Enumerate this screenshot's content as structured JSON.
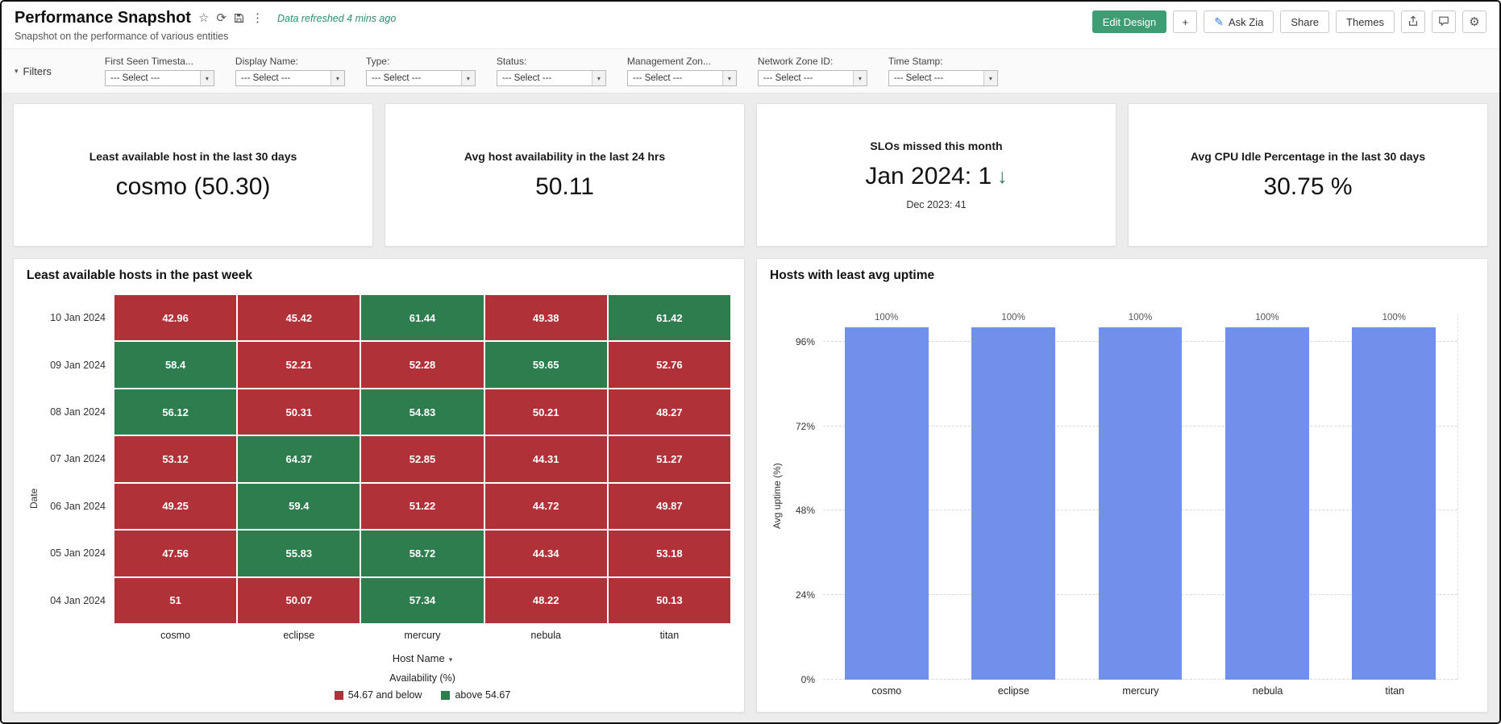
{
  "header": {
    "title": "Performance Snapshot",
    "subtitle": "Snapshot on the performance of various entities",
    "refreshed_text": "Data refreshed 4 mins ago",
    "actions": {
      "edit_design": "Edit Design",
      "add": "+",
      "ask_zia": "Ask Zia",
      "share": "Share",
      "themes": "Themes"
    }
  },
  "icons": {
    "star": "☆",
    "refresh": "⟳",
    "kebab": "⋮",
    "gear": "⚙",
    "chevron_down": "▾",
    "zia_pen": "✎"
  },
  "filters": {
    "toggle_label": "Filters",
    "items": [
      {
        "label": "First Seen Timesta...",
        "value": "--- Select ---"
      },
      {
        "label": "Display Name:",
        "value": "--- Select ---"
      },
      {
        "label": "Type:",
        "value": "--- Select ---"
      },
      {
        "label": "Status:",
        "value": "--- Select ---"
      },
      {
        "label": "Management Zon...",
        "value": "--- Select ---"
      },
      {
        "label": "Network Zone ID:",
        "value": "--- Select ---"
      },
      {
        "label": "Time Stamp:",
        "value": "--- Select ---"
      }
    ]
  },
  "kpis": [
    {
      "title": "Least available host in the last 30 days",
      "value": "cosmo (50.30)"
    },
    {
      "title": "Avg host availability in the last 24 hrs",
      "value": "50.11"
    },
    {
      "title": "SLOs missed this month",
      "value": "Jan 2024: 1",
      "trend_arrow": "↓",
      "secondary": "Dec 2023: 41"
    },
    {
      "title": "Avg CPU Idle Percentage in the last 30 days",
      "value": "30.75 %"
    }
  ],
  "chart_data": [
    {
      "type": "heatmap",
      "title": "Least available hosts in the past week",
      "x_axis_label": "Host Name",
      "y_axis_label": "Date",
      "columns": [
        "cosmo",
        "eclipse",
        "mercury",
        "nebula",
        "titan"
      ],
      "rows": [
        {
          "date": "10 Jan 2024",
          "values": [
            42.96,
            45.42,
            61.44,
            49.38,
            61.42
          ]
        },
        {
          "date": "09 Jan 2024",
          "values": [
            58.4,
            52.21,
            52.28,
            59.65,
            52.76
          ]
        },
        {
          "date": "08 Jan 2024",
          "values": [
            56.12,
            50.31,
            54.83,
            50.21,
            48.27
          ]
        },
        {
          "date": "07 Jan 2024",
          "values": [
            53.12,
            64.37,
            52.85,
            44.31,
            51.27
          ]
        },
        {
          "date": "06 Jan 2024",
          "values": [
            49.25,
            59.4,
            51.22,
            44.72,
            49.87
          ]
        },
        {
          "date": "05 Jan 2024",
          "values": [
            47.56,
            55.83,
            58.72,
            44.34,
            53.18
          ]
        },
        {
          "date": "04 Jan 2024",
          "values": [
            51,
            50.07,
            57.34,
            48.22,
            50.13
          ]
        }
      ],
      "threshold": 54.67,
      "legend_title": "Availability (%)",
      "legend": [
        {
          "label": "54.67 and below",
          "color": "#b13138"
        },
        {
          "label": "above 54.67",
          "color": "#2e7d4f"
        }
      ]
    },
    {
      "type": "bar",
      "title": "Hosts with least avg uptime",
      "ylabel": "Avg uptime (%)",
      "categories": [
        "cosmo",
        "eclipse",
        "mercury",
        "nebula",
        "titan"
      ],
      "values": [
        100,
        100,
        100,
        100,
        100
      ],
      "bar_labels": [
        "100%",
        "100%",
        "100%",
        "100%",
        "100%"
      ],
      "ticks": [
        0,
        24,
        48,
        72,
        96
      ],
      "tick_labels": [
        "0%",
        "24%",
        "48%",
        "72%",
        "96%"
      ],
      "ymax": 104,
      "bar_color": "#7090ec",
      "grid": "dashed-horizontal",
      "legend_position": "none"
    }
  ]
}
